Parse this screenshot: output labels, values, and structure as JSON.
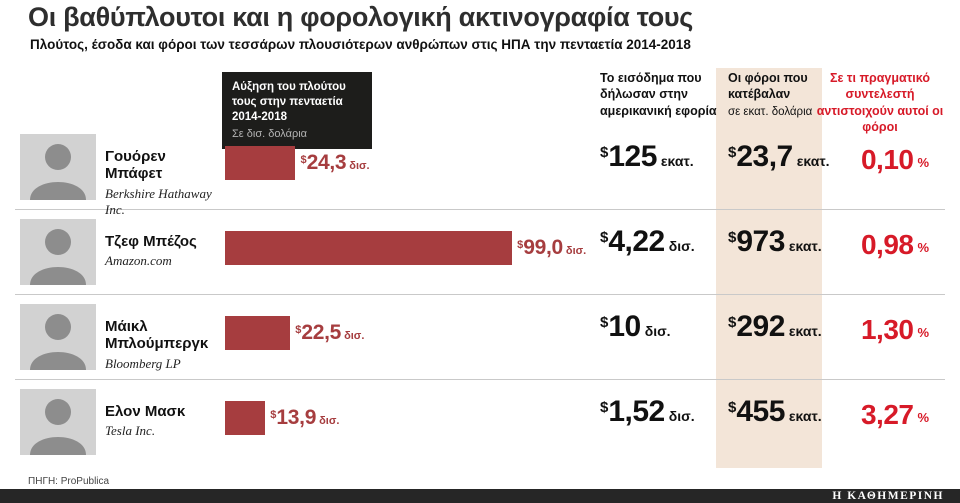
{
  "header": {
    "title": "Οι βαθύπλουτοι και η φορολογική ακτινογραφία τους",
    "subtitle": "Πλούτος, έσοδα και φόροι των τεσσάρων πλουσιότερων ανθρώπων στις ΗΠΑ την πενταετία 2014-2018"
  },
  "callout": {
    "bold": "Αύξηση του πλούτου τους στην πενταετία 2014-2018",
    "sub": "Σε δισ. δολάρια"
  },
  "columns": {
    "income_header": "Το εισόδημα που δήλωσαν στην αμερικανική εφορία",
    "tax_header_bold": "Οι φόροι που κατέβαλαν",
    "tax_header_sub": "σε εκατ. δολάρια",
    "rate_header": "Σε τι πραγματικό συντελεστή αντιστοιχούν αυτοί οι φόροι"
  },
  "rows": [
    {
      "name": "Γουόρεν Μπάφετ",
      "company": "Berkshire Hathaway Inc.",
      "wealth_bn": 24.3,
      "wealth": {
        "currency": "$",
        "value": "24,3",
        "unit": "δισ."
      },
      "income": {
        "currency": "$",
        "value": "125",
        "unit": "εκατ."
      },
      "tax": {
        "currency": "$",
        "value": "23,7",
        "unit": "εκατ."
      },
      "rate": {
        "value": "0,10",
        "unit": "%"
      }
    },
    {
      "name": "Τζεφ Μπέζος",
      "company": "Amazon.com",
      "wealth_bn": 99.0,
      "wealth": {
        "currency": "$",
        "value": "99,0",
        "unit": "δισ."
      },
      "income": {
        "currency": "$",
        "value": "4,22",
        "unit": "δισ."
      },
      "tax": {
        "currency": "$",
        "value": "973",
        "unit": "εκατ."
      },
      "rate": {
        "value": "0,98",
        "unit": "%"
      }
    },
    {
      "name": "Μάικλ Μπλούμπεργκ",
      "company": "Bloomberg LP",
      "wealth_bn": 22.5,
      "wealth": {
        "currency": "$",
        "value": "22,5",
        "unit": "δισ."
      },
      "income": {
        "currency": "$",
        "value": "10",
        "unit": "δισ."
      },
      "tax": {
        "currency": "$",
        "value": "292",
        "unit": "εκατ."
      },
      "rate": {
        "value": "1,30",
        "unit": "%"
      }
    },
    {
      "name": "Ελον Μασκ",
      "company": "Tesla Inc.",
      "wealth_bn": 13.9,
      "wealth": {
        "currency": "$",
        "value": "13,9",
        "unit": "δισ."
      },
      "income": {
        "currency": "$",
        "value": "1,52",
        "unit": "δισ."
      },
      "tax": {
        "currency": "$",
        "value": "455",
        "unit": "εκατ."
      },
      "rate": {
        "value": "3,27",
        "unit": "%"
      }
    }
  ],
  "footer": {
    "source": "ΠΗΓΗ: ProPublica",
    "brand": "Η ΚΑΘΗΜΕΡΙΝΗ"
  },
  "colors": {
    "bar": "#a63d3f",
    "rate_red": "#d71a28",
    "beige_column": "#f3e5d8",
    "callout_bg": "#1d1d1b",
    "brandbar_bg": "#262626"
  },
  "chart_data": {
    "type": "bar",
    "orientation": "horizontal",
    "title": "Οι βαθύπλουτοι και η φορολογική ακτινογραφία τους",
    "subtitle": "Πλούτος, έσοδα και φόροι των τεσσάρων πλουσιότερων ανθρώπων στις ΗΠΑ την πενταετία 2014-2018",
    "categories": [
      "Γουόρεν Μπάφετ — Berkshire Hathaway Inc.",
      "Τζεφ Μπέζος — Amazon.com",
      "Μάικλ Μπλούμπεργκ — Bloomberg LP",
      "Ελον Μασκ — Tesla Inc."
    ],
    "series": [
      {
        "name": "Αύξηση του πλούτου τους στην πενταετία 2014-2018 (σε δισ. δολάρια)",
        "values": [
          24.3,
          99.0,
          22.5,
          13.9
        ],
        "display": [
          "$24,3 δισ.",
          "$99,0 δισ.",
          "$22,5 δισ.",
          "$13,9 δισ."
        ]
      },
      {
        "name": "Το εισόδημα που δήλωσαν στην αμερικανική εφορία (σε εκατ. δολάρια)",
        "values": [
          125,
          4220,
          10000,
          1520
        ],
        "display": [
          "$125 εκατ.",
          "$4,22 δισ.",
          "$10 δισ.",
          "$1,52 δισ."
        ]
      },
      {
        "name": "Οι φόροι που κατέβαλαν (σε εκατ. δολάρια)",
        "values": [
          23.7,
          973,
          292,
          455
        ],
        "display": [
          "$23,7 εκατ.",
          "$973 εκατ.",
          "$292 εκατ.",
          "$455 εκατ."
        ]
      },
      {
        "name": "Σε τι πραγματικό συντελεστή αντιστοιχούν αυτοί οι φόροι (%)",
        "values": [
          0.1,
          0.98,
          1.3,
          3.27
        ],
        "display": [
          "0,10 %",
          "0,98 %",
          "1,30 %",
          "3,27 %"
        ]
      }
    ],
    "source": "ProPublica",
    "grid": false,
    "legend_position": "none"
  }
}
